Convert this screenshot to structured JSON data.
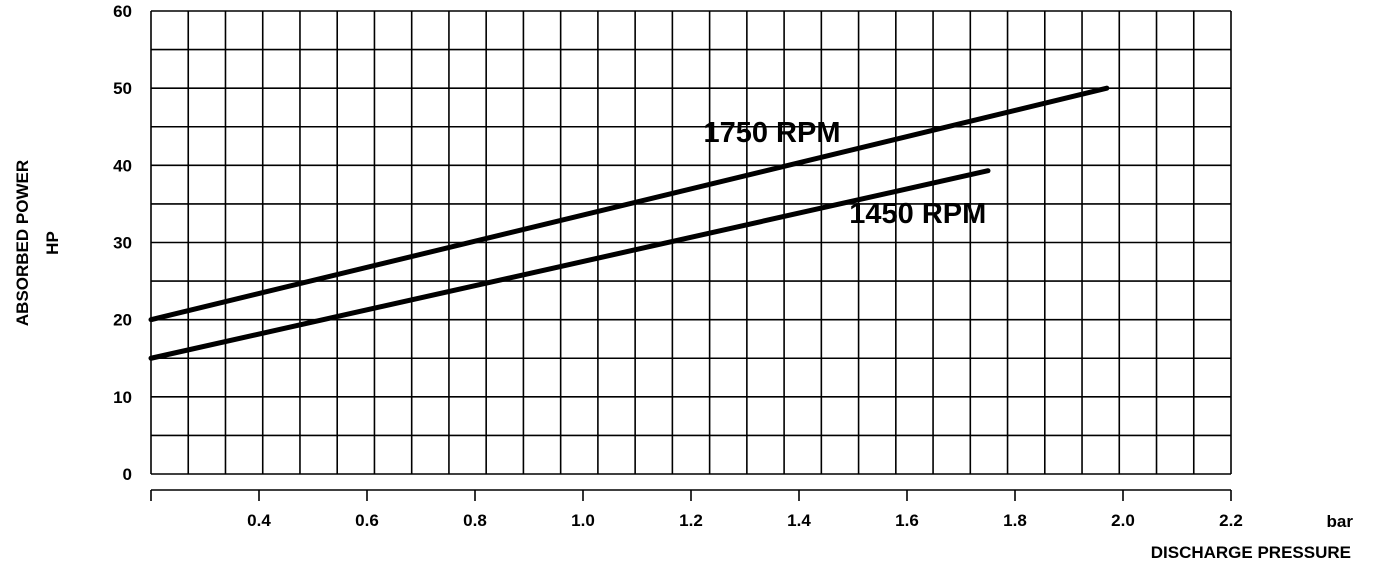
{
  "chart_data": {
    "type": "line",
    "xlabel": "DISCHARGE PRESSURE",
    "xunit": "bar",
    "ylabel_lines": [
      "ABSORBED POWER",
      "HP"
    ],
    "xlim": [
      0.2,
      2.2
    ],
    "ylim": [
      0,
      60
    ],
    "x_ticks": [
      0.4,
      0.6,
      0.8,
      1.0,
      1.2,
      1.4,
      1.6,
      1.8,
      2.0,
      2.2
    ],
    "x_tick_labels": [
      "0.4",
      "0.6",
      "0.8",
      "1.0",
      "1.2",
      "1.4",
      "1.6",
      "1.8",
      "2.0",
      "2.2"
    ],
    "y_ticks": [
      0,
      10,
      20,
      30,
      40,
      50,
      60
    ],
    "y_tick_labels": [
      "0",
      "10",
      "20",
      "30",
      "40",
      "50",
      "60"
    ],
    "grid": true,
    "series": [
      {
        "name": "1750 RPM",
        "x": [
          0.2,
          1.97
        ],
        "y": [
          20,
          50
        ],
        "label_at": [
          1.35,
          43
        ]
      },
      {
        "name": "1450 RPM",
        "x": [
          0.2,
          1.75
        ],
        "y": [
          15,
          39.3
        ],
        "label_at": [
          1.62,
          32.5
        ]
      }
    ]
  }
}
